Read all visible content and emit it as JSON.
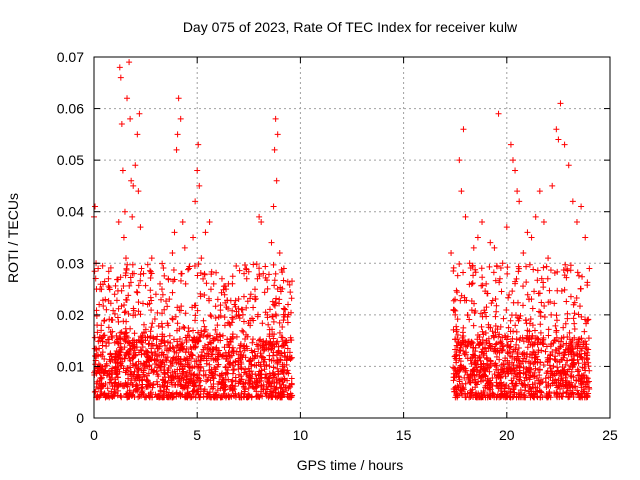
{
  "chart_data": {
    "type": "scatter",
    "title": "Day 075 of 2023, Rate Of TEC Index for receiver kulw",
    "xlabel": "GPS time / hours",
    "ylabel": "ROTI / TECUs",
    "xlim": [
      0,
      25
    ],
    "ylim": [
      0,
      0.07
    ],
    "x_ticks": [
      0,
      5,
      10,
      15,
      20,
      25
    ],
    "x_tick_labels": [
      "0",
      "5",
      "10",
      "15",
      "20",
      "25"
    ],
    "y_ticks": [
      0,
      0.01,
      0.02,
      0.03,
      0.04,
      0.05,
      0.06,
      0.07
    ],
    "y_tick_labels": [
      "0",
      "0.01",
      "0.02",
      "0.03",
      "0.04",
      "0.05",
      "0.06",
      "0.07"
    ],
    "grid": true,
    "marker": "+",
    "color": "#ff0000",
    "series": [
      {
        "name": "ROTI",
        "points": [
          [
            0.0,
            0.039
          ],
          [
            0.05,
            0.041
          ],
          [
            0.1,
            0.03
          ],
          [
            0.12,
            0.025
          ],
          [
            0.15,
            0.018
          ],
          [
            0.2,
            0.029
          ],
          [
            0.25,
            0.022
          ],
          [
            0.3,
            0.015
          ],
          [
            0.4,
            0.012
          ],
          [
            0.5,
            0.009
          ],
          [
            0.6,
            0.021
          ],
          [
            0.7,
            0.027
          ],
          [
            0.8,
            0.011
          ],
          [
            0.9,
            0.019
          ],
          [
            1.0,
            0.024
          ],
          [
            1.1,
            0.013
          ],
          [
            1.2,
            0.038
          ],
          [
            1.25,
            0.068
          ],
          [
            1.3,
            0.066
          ],
          [
            1.35,
            0.057
          ],
          [
            1.4,
            0.048
          ],
          [
            1.45,
            0.035
          ],
          [
            1.5,
            0.04
          ],
          [
            1.55,
            0.031
          ],
          [
            1.6,
            0.062
          ],
          [
            1.7,
            0.069
          ],
          [
            1.75,
            0.058
          ],
          [
            1.8,
            0.046
          ],
          [
            1.85,
            0.039
          ],
          [
            1.9,
            0.045
          ],
          [
            2.0,
            0.049
          ],
          [
            2.1,
            0.055
          ],
          [
            2.15,
            0.044
          ],
          [
            2.2,
            0.059
          ],
          [
            2.25,
            0.037
          ],
          [
            2.3,
            0.029
          ],
          [
            2.4,
            0.028
          ],
          [
            2.6,
            0.022
          ],
          [
            2.8,
            0.031
          ],
          [
            3.0,
            0.024
          ],
          [
            3.2,
            0.026
          ],
          [
            3.4,
            0.021
          ],
          [
            3.6,
            0.027
          ],
          [
            3.8,
            0.032
          ],
          [
            3.9,
            0.036
          ],
          [
            4.0,
            0.052
          ],
          [
            4.05,
            0.055
          ],
          [
            4.1,
            0.062
          ],
          [
            4.2,
            0.058
          ],
          [
            4.3,
            0.038
          ],
          [
            4.4,
            0.033
          ],
          [
            4.6,
            0.029
          ],
          [
            4.8,
            0.035
          ],
          [
            4.9,
            0.042
          ],
          [
            5.0,
            0.048
          ],
          [
            5.05,
            0.053
          ],
          [
            5.1,
            0.045
          ],
          [
            5.2,
            0.031
          ],
          [
            5.4,
            0.036
          ],
          [
            5.6,
            0.038
          ],
          [
            5.8,
            0.026
          ],
          [
            6.0,
            0.023
          ],
          [
            6.2,
            0.027
          ],
          [
            6.4,
            0.025
          ],
          [
            6.6,
            0.018
          ],
          [
            6.8,
            0.022
          ],
          [
            7.0,
            0.02
          ],
          [
            7.2,
            0.021
          ],
          [
            7.4,
            0.027
          ],
          [
            7.6,
            0.024
          ],
          [
            7.8,
            0.023
          ],
          [
            8.0,
            0.039
          ],
          [
            8.1,
            0.038
          ],
          [
            8.2,
            0.028
          ],
          [
            8.4,
            0.02
          ],
          [
            8.6,
            0.034
          ],
          [
            8.7,
            0.041
          ],
          [
            8.75,
            0.052
          ],
          [
            8.8,
            0.058
          ],
          [
            8.85,
            0.046
          ],
          [
            8.9,
            0.055
          ],
          [
            9.0,
            0.032
          ],
          [
            9.2,
            0.029
          ],
          [
            9.4,
            0.022
          ],
          [
            9.5,
            0.006
          ],
          [
            17.3,
            0.032
          ],
          [
            17.5,
            0.02
          ],
          [
            17.7,
            0.05
          ],
          [
            17.8,
            0.044
          ],
          [
            17.9,
            0.056
          ],
          [
            18.0,
            0.039
          ],
          [
            18.2,
            0.03
          ],
          [
            18.4,
            0.033
          ],
          [
            18.6,
            0.035
          ],
          [
            18.8,
            0.038
          ],
          [
            19.0,
            0.026
          ],
          [
            19.2,
            0.034
          ],
          [
            19.4,
            0.033
          ],
          [
            19.6,
            0.059
          ],
          [
            19.8,
            0.03
          ],
          [
            20.0,
            0.037
          ],
          [
            20.2,
            0.053
          ],
          [
            20.3,
            0.05
          ],
          [
            20.4,
            0.048
          ],
          [
            20.5,
            0.044
          ],
          [
            20.6,
            0.042
          ],
          [
            20.8,
            0.032
          ],
          [
            21.0,
            0.036
          ],
          [
            21.2,
            0.035
          ],
          [
            21.4,
            0.039
          ],
          [
            21.6,
            0.044
          ],
          [
            21.8,
            0.038
          ],
          [
            22.0,
            0.031
          ],
          [
            22.2,
            0.045
          ],
          [
            22.4,
            0.056
          ],
          [
            22.5,
            0.054
          ],
          [
            22.6,
            0.061
          ],
          [
            22.8,
            0.053
          ],
          [
            23.0,
            0.049
          ],
          [
            23.2,
            0.042
          ],
          [
            23.4,
            0.038
          ],
          [
            23.6,
            0.041
          ],
          [
            23.8,
            0.035
          ],
          [
            24.0,
            0.029
          ]
        ]
      }
    ]
  }
}
